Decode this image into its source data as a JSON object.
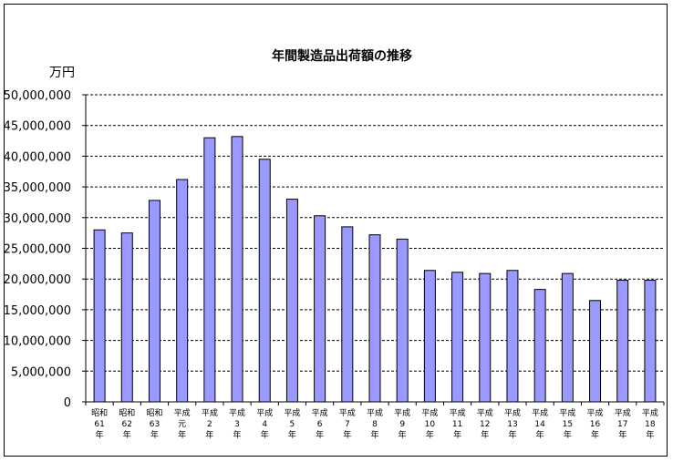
{
  "chart_data": {
    "type": "bar",
    "title": "年間製造品出荷額の推移",
    "ylabel": "万円",
    "xlabel": "",
    "ylim": [
      0,
      50000000
    ],
    "yticks": [
      0,
      5000000,
      10000000,
      15000000,
      20000000,
      25000000,
      30000000,
      35000000,
      40000000,
      45000000,
      50000000
    ],
    "ytick_labels": [
      "0",
      "5,000,000",
      "10,000,000",
      "15,000,000",
      "20,000,000",
      "25,000,000",
      "30,000,000",
      "35,000,000",
      "40,000,000",
      "45,000,000",
      "50,000,000"
    ],
    "grid": "horizontal dashed",
    "bar_color": "#9999ff",
    "categories": [
      [
        "昭和",
        "61",
        "年"
      ],
      [
        "昭和",
        "62",
        "年"
      ],
      [
        "昭和",
        "63",
        "年"
      ],
      [
        "平成",
        "元",
        "年"
      ],
      [
        "平成",
        "2",
        "年"
      ],
      [
        "平成",
        "3",
        "年"
      ],
      [
        "平成",
        "4",
        "年"
      ],
      [
        "平成",
        "5",
        "年"
      ],
      [
        "平成",
        "6",
        "年"
      ],
      [
        "平成",
        "7",
        "年"
      ],
      [
        "平成",
        "8",
        "年"
      ],
      [
        "平成",
        "9",
        "年"
      ],
      [
        "平成",
        "10",
        "年"
      ],
      [
        "平成",
        "11",
        "年"
      ],
      [
        "平成",
        "12",
        "年"
      ],
      [
        "平成",
        "13",
        "年"
      ],
      [
        "平成",
        "14",
        "年"
      ],
      [
        "平成",
        "15",
        "年"
      ],
      [
        "平成",
        "16",
        "年"
      ],
      [
        "平成",
        "17",
        "年"
      ],
      [
        "平成",
        "18",
        "年"
      ]
    ],
    "values": [
      28000000,
      27500000,
      32800000,
      36200000,
      43000000,
      43200000,
      39500000,
      33000000,
      30300000,
      28500000,
      27200000,
      26500000,
      21400000,
      21100000,
      20900000,
      21400000,
      18300000,
      20900000,
      16500000,
      19800000,
      19800000
    ]
  }
}
